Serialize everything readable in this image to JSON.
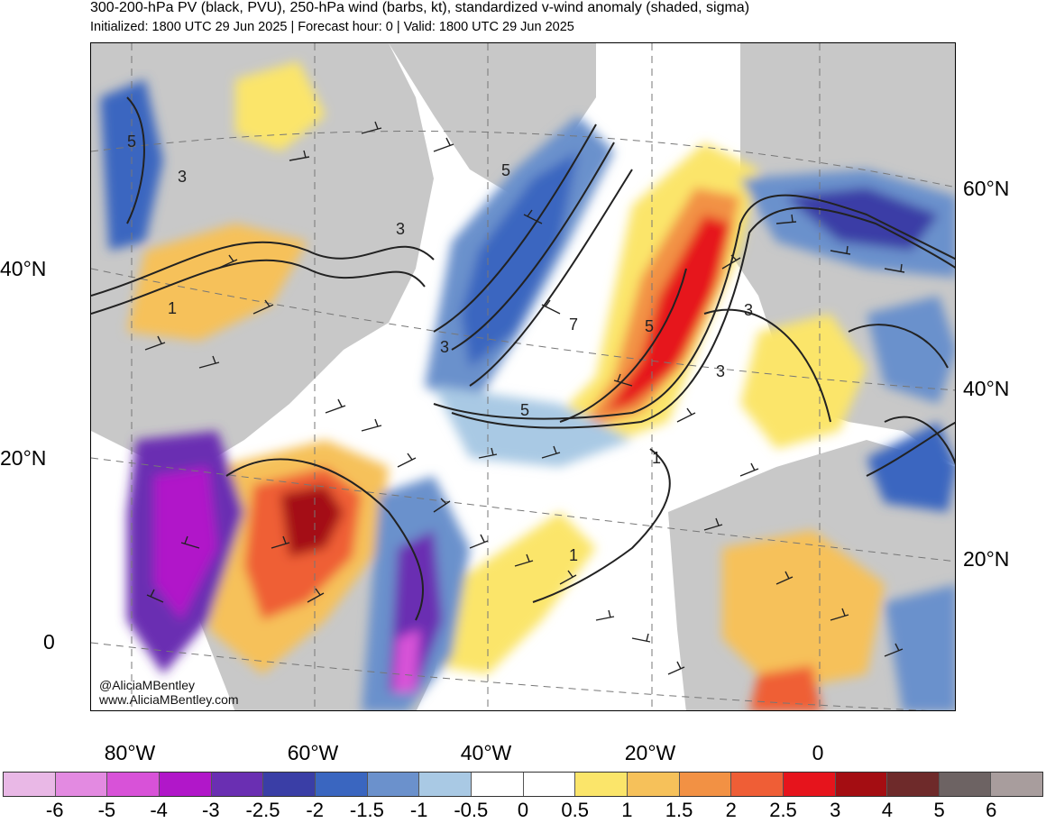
{
  "title": "300-200-hPa PV (black, PVU), 250-hPa wind (barbs, kt), standardized v-wind anomaly (shaded, sigma)",
  "subtitle": "Initialized: 1800 UTC 29 Jun 2025 | Forecast hour: 0 | Valid: 1800 UTC 29 Jun 2025",
  "lat_labels_left": [
    "40°N",
    "20°N",
    "0"
  ],
  "lat_labels_right": [
    "60°N",
    "40°N",
    "20°N"
  ],
  "lon_labels": [
    "80°W",
    "60°W",
    "40°W",
    "20°W",
    "0"
  ],
  "pv_contour_labels": [
    "5",
    "3",
    "3",
    "5",
    "3",
    "1",
    "3",
    "7",
    "5",
    "5",
    "3",
    "1",
    "1"
  ],
  "credit": {
    "handle": "@AliciaMBentley",
    "website": "www.AliciaMBentley.com"
  },
  "colorbar": {
    "colors": [
      "#e9b8e6",
      "#e38ae1",
      "#d852d8",
      "#b117c9",
      "#6a2fb2",
      "#3a3ea6",
      "#3a66c0",
      "#6b91cc",
      "#a9c9e4",
      "#ffffff",
      "#ffffff",
      "#fbe56a",
      "#f6c15a",
      "#f29144",
      "#ef5e36",
      "#e6141c",
      "#a40d12",
      "#6e2a2a",
      "#6d6363",
      "#a89d9d"
    ],
    "ticks": [
      "-6",
      "-5",
      "-4",
      "-3",
      "-2.5",
      "-2",
      "-1.5",
      "-1",
      "-0.5",
      "0",
      "0.5",
      "1",
      "1.5",
      "2",
      "2.5",
      "3",
      "4",
      "5",
      "6"
    ]
  },
  "land_color": "#c8c8c8"
}
